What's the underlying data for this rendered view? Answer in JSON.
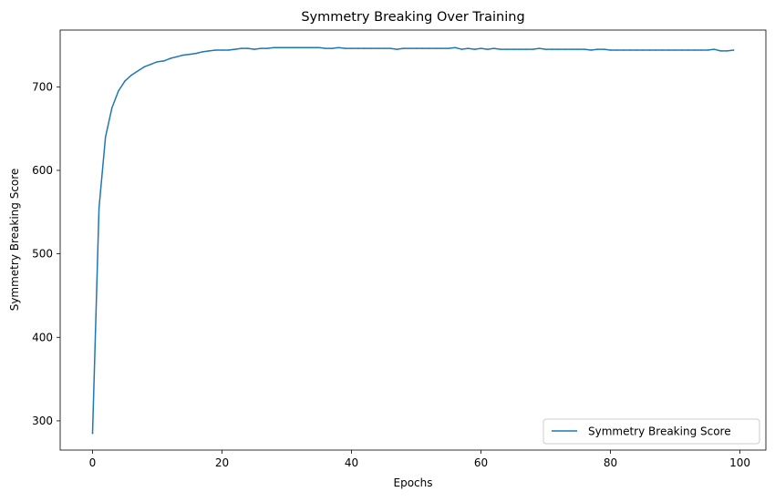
{
  "chart_data": {
    "type": "line",
    "title": "Symmetry Breaking Over Training",
    "xlabel": "Epochs",
    "ylabel": "Symmetry Breaking Score",
    "xlim": [
      -5,
      104
    ],
    "ylim": [
      265,
      768
    ],
    "xticks": [
      0,
      20,
      40,
      60,
      80,
      100
    ],
    "yticks": [
      300,
      400,
      500,
      600,
      700
    ],
    "grid": false,
    "legend_position": "lower-right",
    "series": [
      {
        "name": "Symmetry Breaking Score",
        "color": "#1f77b4",
        "x": [
          0,
          1,
          2,
          3,
          4,
          5,
          6,
          7,
          8,
          9,
          10,
          11,
          12,
          13,
          14,
          15,
          16,
          17,
          18,
          19,
          20,
          21,
          22,
          23,
          24,
          25,
          26,
          27,
          28,
          29,
          30,
          31,
          32,
          33,
          34,
          35,
          36,
          37,
          38,
          39,
          40,
          41,
          42,
          43,
          44,
          45,
          46,
          47,
          48,
          49,
          50,
          51,
          52,
          53,
          54,
          55,
          56,
          57,
          58,
          59,
          60,
          61,
          62,
          63,
          64,
          65,
          66,
          67,
          68,
          69,
          70,
          71,
          72,
          73,
          74,
          75,
          76,
          77,
          78,
          79,
          80,
          81,
          82,
          83,
          84,
          85,
          86,
          87,
          88,
          89,
          90,
          91,
          92,
          93,
          94,
          95,
          96,
          97,
          98,
          99
        ],
        "values": [
          285,
          555,
          640,
          675,
          695,
          707,
          714,
          719,
          724,
          727,
          730,
          731,
          734,
          736,
          738,
          739,
          740,
          742,
          743,
          744,
          744,
          744,
          745,
          746,
          746,
          745,
          746,
          746,
          747,
          747,
          747,
          747,
          747,
          747,
          747,
          747,
          746,
          746,
          747,
          746,
          746,
          746,
          746,
          746,
          746,
          746,
          746,
          745,
          746,
          746,
          746,
          746,
          746,
          746,
          746,
          746,
          747,
          745,
          746,
          745,
          746,
          745,
          746,
          745,
          745,
          745,
          745,
          745,
          745,
          746,
          745,
          745,
          745,
          745,
          745,
          745,
          745,
          744,
          745,
          745,
          744,
          744,
          744,
          744,
          744,
          744,
          744,
          744,
          744,
          744,
          744,
          744,
          744,
          744,
          744,
          744,
          745,
          743,
          743,
          744
        ]
      }
    ]
  }
}
